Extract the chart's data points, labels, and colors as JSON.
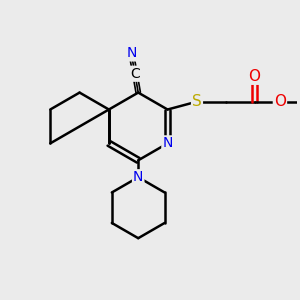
{
  "background_color": "#ebebeb",
  "atom_colors": {
    "C": "#000000",
    "N": "#0000ee",
    "O": "#ee0000",
    "S": "#bbaa00",
    "H": "#000000"
  },
  "bond_color": "#000000",
  "bond_width": 1.8,
  "font_size_atoms": 10
}
